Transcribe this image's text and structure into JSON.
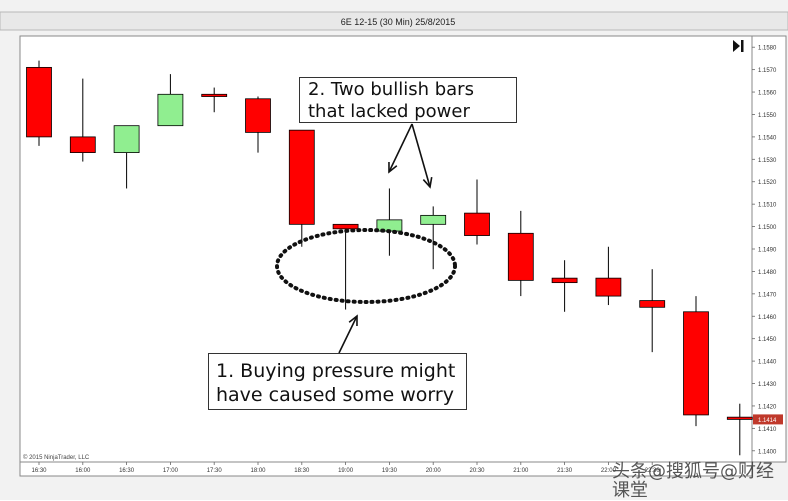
{
  "chart_data": {
    "type": "candlestick",
    "title": "6E 12-15 (30 Min)  25/8/2015",
    "copyright": "© 2015 NinjaTrader, LLC",
    "ylim": [
      1.1395,
      1.1585
    ],
    "y_ticks": [
      "1.1580",
      "1.1570",
      "1.1560",
      "1.1550",
      "1.1540",
      "1.1530",
      "1.1520",
      "1.1510",
      "1.1500",
      "1.1490",
      "1.1480",
      "1.1470",
      "1.1460",
      "1.1450",
      "1.1440",
      "1.1430",
      "1.1420",
      "1.1410",
      "1.1400",
      "1.1390"
    ],
    "x_ticks": [
      "16:30",
      "16:00",
      "16:30",
      "17:00",
      "17:30",
      "18:00",
      "18:30",
      "19:00",
      "19:30",
      "20:00",
      "20:30",
      "21:00",
      "21:30",
      "22:00",
      "22:30"
    ],
    "last_price": "1.1414",
    "colors": {
      "up": "#90ee90",
      "down": "#ff0000",
      "wick": "#000000",
      "price_tag": "#c0392b"
    },
    "candles": [
      {
        "o": 1.1571,
        "h": 1.1574,
        "l": 1.1536,
        "c": 1.154
      },
      {
        "o": 1.154,
        "h": 1.1566,
        "l": 1.1529,
        "c": 1.1533
      },
      {
        "o": 1.1533,
        "h": 1.1545,
        "l": 1.1517,
        "c": 1.1545
      },
      {
        "o": 1.1545,
        "h": 1.1568,
        "l": 1.1545,
        "c": 1.1559
      },
      {
        "o": 1.1559,
        "h": 1.1562,
        "l": 1.1551,
        "c": 1.1558
      },
      {
        "o": 1.1557,
        "h": 1.1558,
        "l": 1.1533,
        "c": 1.1542
      },
      {
        "o": 1.1543,
        "h": 1.1543,
        "l": 1.1491,
        "c": 1.1501
      },
      {
        "o": 1.1501,
        "h": 1.1501,
        "l": 1.1463,
        "c": 1.1499
      },
      {
        "o": 1.1498,
        "h": 1.1517,
        "l": 1.1487,
        "c": 1.1503
      },
      {
        "o": 1.1501,
        "h": 1.1509,
        "l": 1.1481,
        "c": 1.1505
      },
      {
        "o": 1.1506,
        "h": 1.1521,
        "l": 1.1492,
        "c": 1.1496
      },
      {
        "o": 1.1497,
        "h": 1.1507,
        "l": 1.1469,
        "c": 1.1476
      },
      {
        "o": 1.1477,
        "h": 1.1485,
        "l": 1.1462,
        "c": 1.1475
      },
      {
        "o": 1.1477,
        "h": 1.1491,
        "l": 1.1465,
        "c": 1.1469
      },
      {
        "o": 1.1467,
        "h": 1.1481,
        "l": 1.1444,
        "c": 1.1464
      },
      {
        "o": 1.1462,
        "h": 1.1469,
        "l": 1.1411,
        "c": 1.1416
      },
      {
        "o": 1.1415,
        "h": 1.1421,
        "l": 1.1398,
        "c": 1.1414
      }
    ],
    "annotations": [
      {
        "id": "annot-2",
        "label": "2. Two bullish bars\nthat lacked power"
      },
      {
        "id": "annot-1",
        "label": "1. Buying pressure might\nhave caused some worry"
      }
    ]
  },
  "watermark": "头条@搜狐号@财经课堂"
}
